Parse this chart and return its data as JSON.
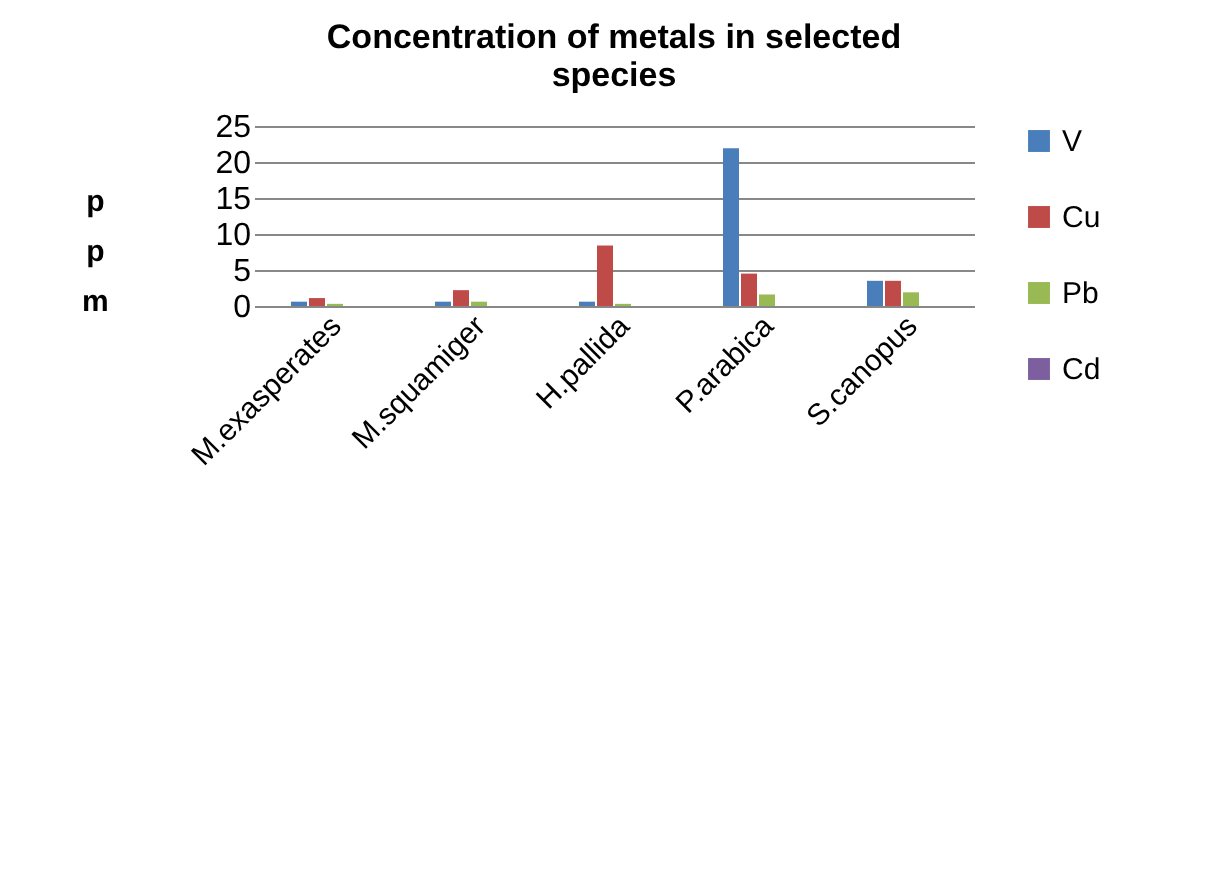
{
  "chart_data": {
    "type": "bar",
    "title": "Concentration of metals in selected species",
    "ylabel": "ppm",
    "categories": [
      "M.exasperates",
      "M.squamiger",
      "H.pallida",
      "P.arabica",
      "S.canopus"
    ],
    "series": [
      {
        "name": "V",
        "color": "#4a7ebb",
        "values": [
          0.6,
          0.6,
          0.6,
          21.9,
          3.5
        ]
      },
      {
        "name": "Cu",
        "color": "#be4b48",
        "values": [
          1.1,
          2.2,
          8.4,
          4.5,
          3.5
        ]
      },
      {
        "name": "Pb",
        "color": "#98b954",
        "values": [
          0.3,
          0.6,
          0.3,
          1.6,
          1.9
        ]
      },
      {
        "name": "Cd",
        "color": "#7d5fa0",
        "values": [
          0,
          0,
          0,
          0,
          0
        ]
      }
    ],
    "ylim": [
      0,
      25
    ],
    "yticks": [
      0,
      5,
      10,
      15,
      20,
      25
    ],
    "grid": "y",
    "legend": "right"
  }
}
